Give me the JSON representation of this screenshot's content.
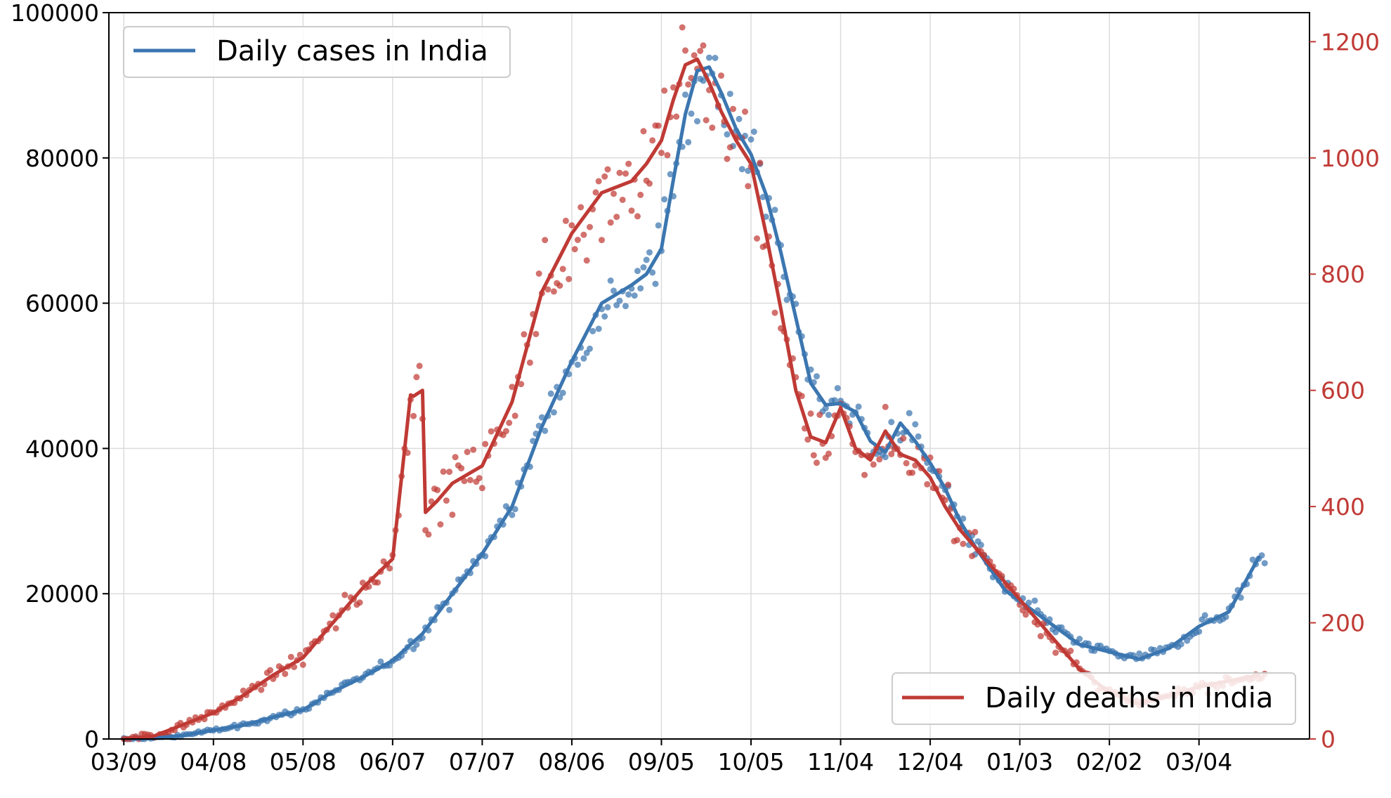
{
  "chart_data": {
    "type": "line",
    "x_tick_labels": [
      "03/09",
      "04/08",
      "05/08",
      "06/07",
      "07/07",
      "08/06",
      "09/05",
      "10/05",
      "11/04",
      "12/04",
      "01/03",
      "02/02",
      "03/04"
    ],
    "y_left_ticks": [
      "0",
      "20000",
      "40000",
      "60000",
      "80000",
      "100000"
    ],
    "y_right_ticks": [
      "0",
      "200",
      "400",
      "600",
      "800",
      "1000",
      "1200"
    ],
    "ylim_left": [
      0,
      100000
    ],
    "ylim_right": [
      0,
      1250
    ],
    "xlim_days": [
      -5,
      397
    ],
    "grid": true,
    "colors": {
      "cases": "#3b76b0",
      "deaths": "#c03a35"
    },
    "series": [
      {
        "name": "Daily cases in India",
        "axis": "left",
        "legend_position": "top-left",
        "days": [
          0,
          10,
          20,
          30,
          40,
          50,
          60,
          70,
          80,
          90,
          100,
          110,
          120,
          130,
          140,
          150,
          160,
          170,
          175,
          180,
          184,
          188,
          192,
          196,
          200,
          205,
          210,
          215,
          220,
          225,
          230,
          235,
          240,
          245,
          250,
          255,
          260,
          265,
          270,
          275,
          280,
          285,
          290,
          295,
          300,
          310,
          320,
          330,
          340,
          350,
          360,
          370,
          380
        ],
        "values": [
          0,
          100,
          500,
          1200,
          1900,
          3000,
          4000,
          6500,
          8500,
          10800,
          14500,
          20000,
          25500,
          32000,
          43000,
          52000,
          60000,
          62500,
          64000,
          67500,
          77000,
          86000,
          92000,
          92500,
          89000,
          84000,
          80500,
          75000,
          67000,
          58000,
          49000,
          46000,
          46200,
          45000,
          41000,
          39500,
          43500,
          41000,
          38000,
          34500,
          30000,
          26500,
          23500,
          20500,
          19000,
          16000,
          13000,
          12000,
          11000,
          12500,
          15500,
          17500,
          25000
        ]
      },
      {
        "name": "Daily deaths in India",
        "axis": "right",
        "legend_position": "bottom-right",
        "days": [
          0,
          10,
          20,
          30,
          40,
          50,
          60,
          70,
          80,
          90,
          96,
          97,
          100,
          101,
          103,
          105,
          110,
          120,
          130,
          140,
          145,
          150,
          160,
          170,
          175,
          180,
          184,
          188,
          192,
          196,
          200,
          205,
          210,
          215,
          220,
          225,
          230,
          235,
          240,
          245,
          250,
          255,
          260,
          265,
          270,
          275,
          280,
          285,
          290,
          295,
          300,
          310,
          320,
          330,
          340,
          350,
          360,
          370,
          380
        ],
        "values": [
          0,
          5,
          25,
          45,
          75,
          110,
          140,
          200,
          260,
          310,
          592,
          590,
          600,
          390,
          400,
          410,
          440,
          470,
          580,
          770,
          820,
          870,
          940,
          960,
          990,
          1030,
          1100,
          1160,
          1170,
          1130,
          1080,
          1030,
          990,
          870,
          740,
          600,
          520,
          510,
          570,
          500,
          480,
          530,
          490,
          480,
          450,
          400,
          360,
          330,
          300,
          270,
          240,
          180,
          120,
          80,
          60,
          75,
          90,
          100,
          110
        ]
      }
    ]
  }
}
